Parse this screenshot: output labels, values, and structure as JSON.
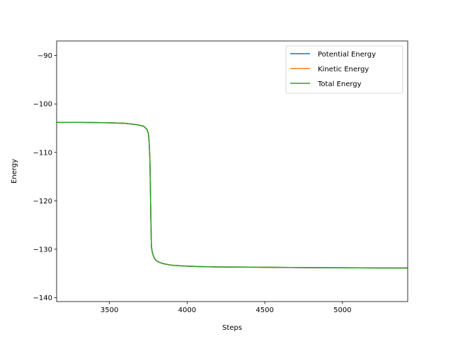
{
  "chart_data": {
    "type": "line",
    "title": "",
    "xlabel": "Steps",
    "ylabel": "Energy",
    "xlim": [
      3160,
      5420
    ],
    "ylim": [
      -140.8,
      -87
    ],
    "xticks": [
      3500,
      4000,
      4500,
      5000
    ],
    "xtick_labels": [
      "3500",
      "4000",
      "4500",
      "5000"
    ],
    "yticks": [
      -90,
      -100,
      -110,
      -120,
      -130,
      -140
    ],
    "ytick_labels": [
      "−90",
      "−100",
      "−110",
      "−120",
      "−130",
      "−140"
    ],
    "grid": false,
    "legend_position": "top-right",
    "series": [
      {
        "name": "Potential Energy",
        "color": "#1f77b4",
        "x": [
          3160,
          3300,
          3500,
          3600,
          3680,
          3720,
          3740,
          3750,
          3755,
          3760,
          3763,
          3766,
          3770,
          3775,
          3780,
          3790,
          3800,
          3820,
          3850,
          3900,
          3950,
          4000,
          4100,
          4200,
          4400,
          4600,
          4800,
          5000,
          5200,
          5420
        ],
        "y": [
          -103.8,
          -103.8,
          -103.9,
          -104.0,
          -104.3,
          -104.6,
          -105.2,
          -106.0,
          -107.5,
          -111.0,
          -116.0,
          -122.5,
          -129.3,
          -130.5,
          -131.1,
          -131.9,
          -132.3,
          -132.7,
          -133.0,
          -133.3,
          -133.4,
          -133.5,
          -133.6,
          -133.65,
          -133.7,
          -133.75,
          -133.8,
          -133.82,
          -133.85,
          -133.87
        ]
      },
      {
        "name": "Kinetic Energy",
        "color": "#ff7f0e",
        "x": [
          3160,
          3300,
          3500,
          3600,
          3680,
          3720,
          3740,
          3750,
          3755,
          3760,
          3763,
          3766,
          3770,
          3775,
          3780,
          3790,
          3800,
          3820,
          3850,
          3900,
          3950,
          4000,
          4100,
          4200,
          4400,
          4600,
          4800,
          5000,
          5200,
          5420
        ],
        "y": [
          -103.8,
          -103.8,
          -103.9,
          -104.0,
          -104.3,
          -104.6,
          -105.2,
          -106.0,
          -107.5,
          -111.0,
          -116.0,
          -122.5,
          -129.3,
          -130.5,
          -131.1,
          -131.9,
          -132.3,
          -132.7,
          -133.0,
          -133.3,
          -133.4,
          -133.5,
          -133.6,
          -133.65,
          -133.7,
          -133.75,
          -133.8,
          -133.82,
          -133.85,
          -133.87
        ]
      },
      {
        "name": "Total Energy",
        "color": "#2ca02c",
        "x": [
          3160,
          3300,
          3500,
          3600,
          3680,
          3720,
          3740,
          3750,
          3755,
          3760,
          3763,
          3766,
          3770,
          3775,
          3780,
          3790,
          3800,
          3820,
          3850,
          3900,
          3950,
          4000,
          4100,
          4200,
          4400,
          4600,
          4800,
          5000,
          5200,
          5420
        ],
        "y": [
          -103.8,
          -103.8,
          -103.9,
          -104.0,
          -104.3,
          -104.6,
          -105.2,
          -106.0,
          -107.5,
          -111.0,
          -116.0,
          -122.5,
          -129.3,
          -130.5,
          -131.1,
          -131.9,
          -132.3,
          -132.7,
          -133.0,
          -133.3,
          -133.4,
          -133.5,
          -133.6,
          -133.65,
          -133.7,
          -133.75,
          -133.8,
          -133.82,
          -133.85,
          -133.87
        ]
      }
    ]
  }
}
